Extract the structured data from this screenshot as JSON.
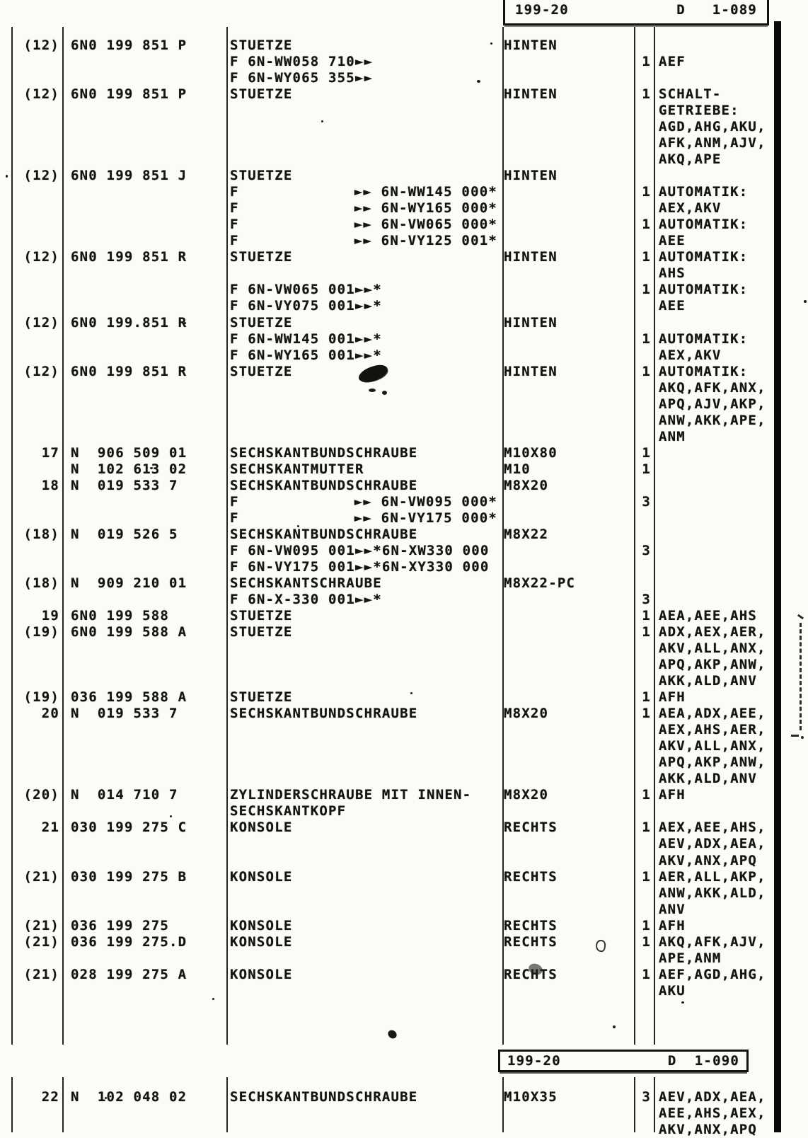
{
  "header_top": {
    "section": "199-20",
    "page": "D   1-089"
  },
  "header_bottom": {
    "section": "199-20",
    "page": "D  1-090"
  },
  "colors": {
    "ink": "#151412",
    "paper": "#fbfbf8"
  },
  "table1": {
    "rows": [
      {
        "pos": "(12)",
        "part": "6N0 199 851 P",
        "desc": "STUETZE",
        "remark": "HINTEN"
      },
      {
        "desc": "F 6N-WW058 710►►",
        "qty": "1",
        "codes": "AEF"
      },
      {
        "desc": "F 6N-WY065 355►►"
      },
      {
        "pos": "(12)",
        "part": "6N0 199 851 P",
        "desc": "STUETZE",
        "remark": "HINTEN",
        "qty": "1",
        "codes": "SCHALT-"
      },
      {
        "codes": "GETRIEBE:"
      },
      {
        "codes": "AGD,AHG,AKU,"
      },
      {
        "codes": "AFK,ANM,AJV,"
      },
      {
        "codes": "AKQ,APE"
      },
      {
        "pos": "(12)",
        "part": "6N0 199 851 J",
        "desc": "STUETZE",
        "remark": "HINTEN"
      },
      {
        "desc": "F",
        "descRight": "►► 6N-WW145 000*",
        "qty": "1",
        "codes": "AUTOMATIK:"
      },
      {
        "desc": "F",
        "descRight": "►► 6N-WY165 000*",
        "codes": "AEX,AKV"
      },
      {
        "desc": "F",
        "descRight": "►► 6N-VW065 000*",
        "qty": "1",
        "codes": "AUTOMATIK:"
      },
      {
        "desc": "F",
        "descRight": "►► 6N-VY125 001*",
        "codes": "AEE"
      },
      {
        "pos": "(12)",
        "part": "6N0 199 851 R",
        "desc": "STUETZE",
        "remark": "HINTEN",
        "qty": "1",
        "codes": "AUTOMATIK:"
      },
      {
        "codes": "AHS"
      },
      {
        "desc": "F 6N-VW065 001►►*",
        "qty": "1",
        "codes": "AUTOMATIK:"
      },
      {
        "desc": "F 6N-VY075 001►►*",
        "codes": "AEE"
      },
      {
        "pos": "(12)",
        "part": "6N0 199.851 R",
        "desc": "STUETZE",
        "remark": "HINTEN"
      },
      {
        "desc": "F 6N-WW145 001►►*",
        "qty": "1",
        "codes": "AUTOMATIK:"
      },
      {
        "desc": "F 6N-WY165 001►►*",
        "codes": "AEX,AKV"
      },
      {
        "pos": "(12)",
        "part": "6N0 199 851 R",
        "desc": "STUETZE",
        "remark": "HINTEN",
        "qty": "1",
        "codes": "AUTOMATIK:"
      },
      {
        "codes": "AKQ,AFK,ANX,"
      },
      {
        "codes": "APQ,AJV,AKP,"
      },
      {
        "codes": "ANW,AKK,APE,"
      },
      {
        "codes": "ANM"
      },
      {
        "pos": "17",
        "part": "N  906 509 01",
        "desc": "SECHSKANTBUNDSCHRAUBE",
        "remark": "M10X80",
        "qty": "1"
      },
      {
        "part": "N  102 613 02",
        "desc": "SECHSKANTMUTTER",
        "remark": "M10",
        "qty": "1"
      },
      {
        "pos": "18",
        "part": "N  019 533 7",
        "desc": "SECHSKANTBUNDSCHRAUBE",
        "remark": "M8X20"
      },
      {
        "desc": "F",
        "descRight": "►► 6N-VW095 000*",
        "qty": "3"
      },
      {
        "desc": "F",
        "descRight": "►► 6N-VY175 000*"
      },
      {
        "pos": "(18)",
        "part": "N  019 526 5",
        "desc": "SECHSKANTBUNDSCHRAUBE",
        "remark": "M8X22"
      },
      {
        "desc": "F 6N-VW095 001►►*6N-XW330 000",
        "qty": "3"
      },
      {
        "desc": "F 6N-VY175 001►►*6N-XY330 000"
      },
      {
        "pos": "(18)",
        "part": "N  909 210 01",
        "desc": "SECHSKANTSCHRAUBE",
        "remark": "M8X22-PC"
      },
      {
        "desc": "F 6N-X-330 001►►*",
        "qty": "3"
      },
      {
        "pos": "19",
        "part": "6N0 199 588",
        "desc": "STUETZE",
        "qty": "1",
        "codes": "AEA,AEE,AHS"
      },
      {
        "pos": "(19)",
        "part": "6N0 199 588 A",
        "desc": "STUETZE",
        "qty": "1",
        "codes": "ADX,AEX,AER,"
      },
      {
        "codes": "AKV,ALL,ANX,"
      },
      {
        "codes": "APQ,AKP,ANW,"
      },
      {
        "codes": "AKK,ALD,ANV"
      },
      {
        "pos": "(19)",
        "part": "036 199 588 A",
        "desc": "STUETZE",
        "qty": "1",
        "codes": "AFH"
      },
      {
        "pos": "20",
        "part": "N  019 533 7",
        "desc": "SECHSKANTBUNDSCHRAUBE",
        "remark": "M8X20",
        "qty": "1",
        "codes": "AEA,ADX,AEE,"
      },
      {
        "codes": "AEX,AHS,AER,"
      },
      {
        "codes": "AKV,ALL,ANX,"
      },
      {
        "codes": "APQ,AKP,ANW,"
      },
      {
        "codes": "AKK,ALD,ANV"
      },
      {
        "pos": "(20)",
        "part": "N  014 710 7",
        "desc": "ZYLINDERSCHRAUBE MIT INNEN-",
        "remark": "M8X20",
        "qty": "1",
        "codes": "AFH"
      },
      {
        "desc": "SECHSKANTKOPF"
      },
      {
        "pos": "21",
        "part": "030 199 275 C",
        "desc": "KONSOLE",
        "remark": "RECHTS",
        "qty": "1",
        "codes": "AEX,AEE,AHS,"
      },
      {
        "codes": "AEV,ADX,AEA,"
      },
      {
        "codes": "AKV,ANX,APQ"
      },
      {
        "pos": "(21)",
        "part": "030 199 275 B",
        "desc": "KONSOLE",
        "remark": "RECHTS",
        "qty": "1",
        "codes": "AER,ALL,AKP,"
      },
      {
        "codes": "ANW,AKK,ALD,"
      },
      {
        "codes": "ANV"
      },
      {
        "pos": "(21)",
        "part": "036 199 275",
        "desc": "KONSOLE",
        "remark": "RECHTS",
        "qty": "1",
        "codes": "AFH"
      },
      {
        "pos": "(21)",
        "part": "036 199 275.D",
        "desc": "KONSOLE",
        "remark": "RECHTS",
        "qty": "1",
        "codes": "AKQ,AFK,AJV,"
      },
      {
        "codes": "APE,ANM"
      },
      {
        "pos": "(21)",
        "part": "028 199 275 A",
        "desc": "KONSOLE",
        "remark": "RECHTS",
        "qty": "1",
        "codes": "AEF,AGD,AHG,"
      },
      {
        "codes": "AKU"
      }
    ]
  },
  "table2": {
    "rows": [
      {
        "pos": "22",
        "part": "N  102 048 02",
        "desc": "SECHSKANTBUNDSCHRAUBE",
        "remark": "M10X35",
        "qty": "3",
        "codes": "AEV,ADX,AEA,"
      },
      {
        "codes": "AEE,AHS,AEX,"
      },
      {
        "codes": "AKV,ANX,APQ"
      }
    ]
  }
}
